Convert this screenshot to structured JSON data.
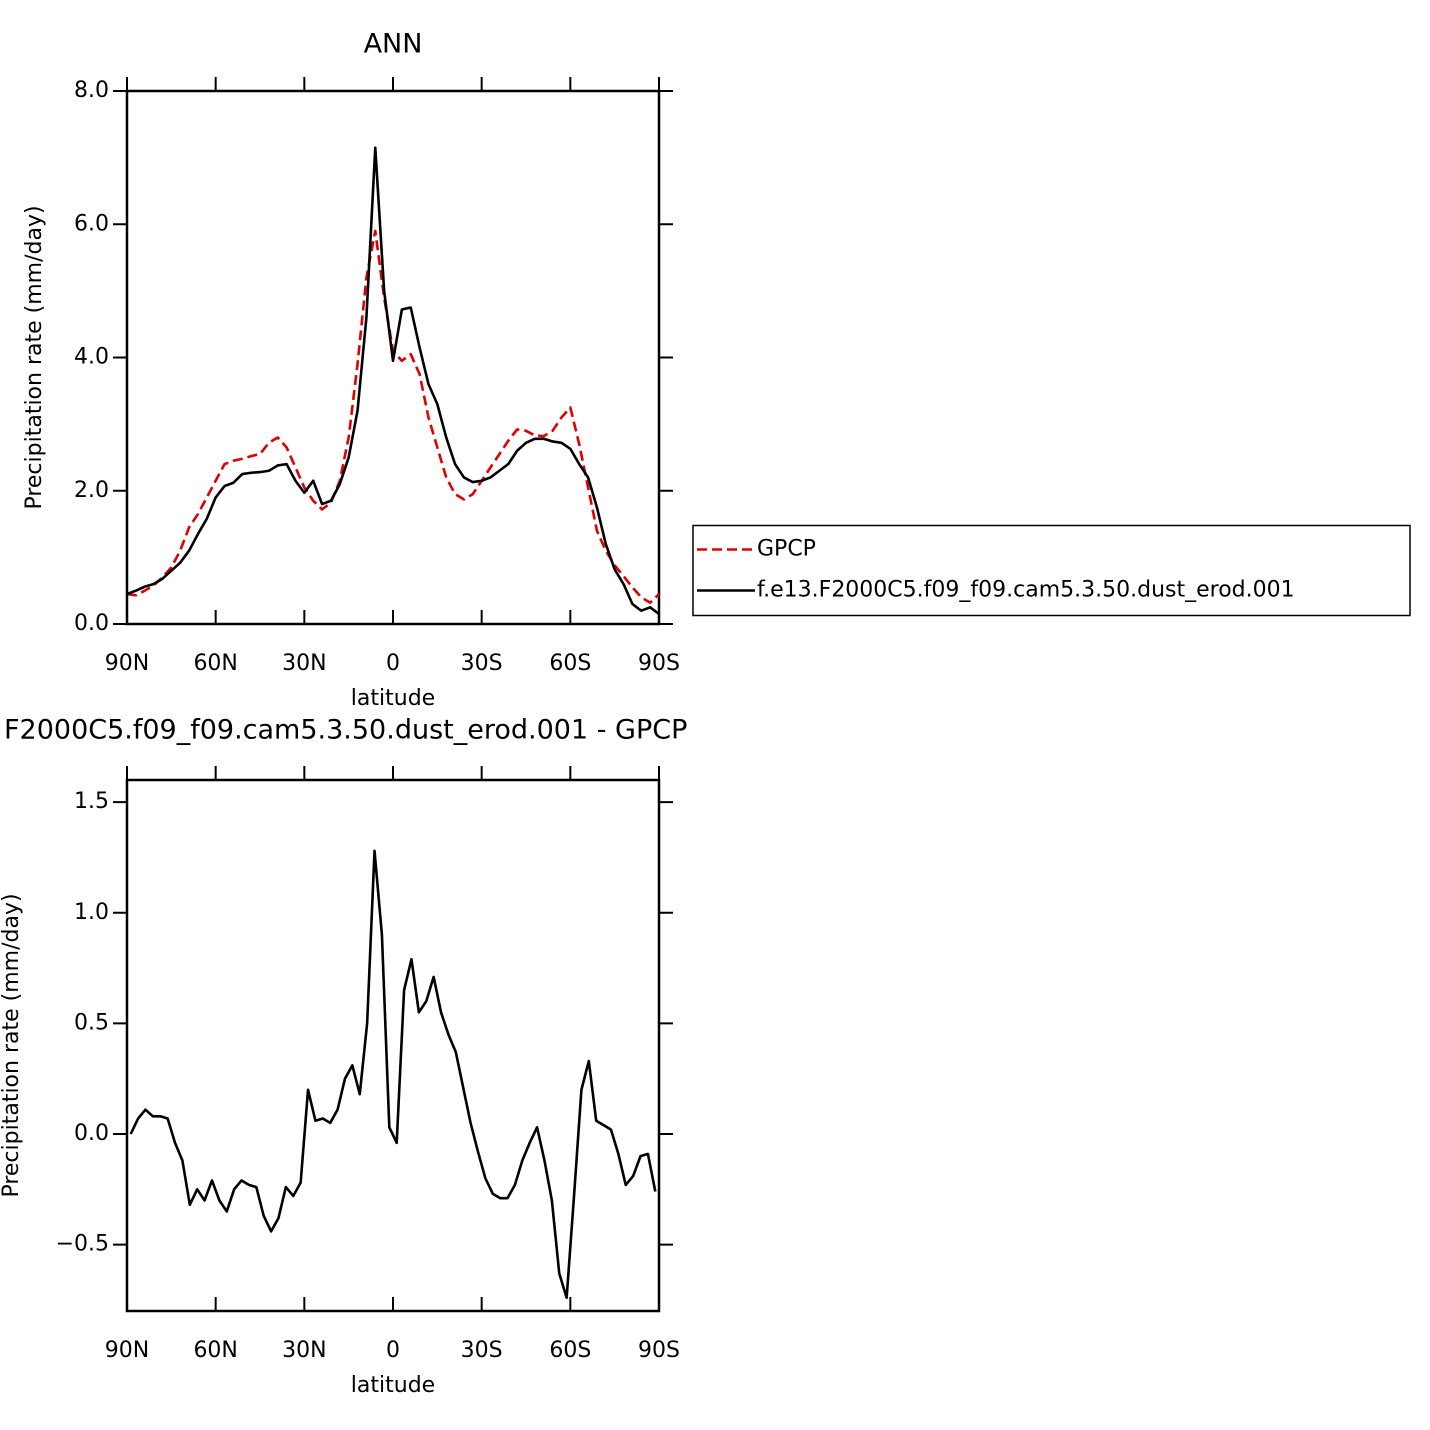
{
  "chart_data": [
    {
      "type": "line",
      "title": "ANN",
      "xlabel": "latitude",
      "ylabel": "Precipitation rate (mm/day)",
      "xlim": [
        90,
        -90
      ],
      "ylim": [
        0,
        8
      ],
      "xticks": [
        {
          "value": 90,
          "label": "90N"
        },
        {
          "value": 60,
          "label": "60N"
        },
        {
          "value": 30,
          "label": "30N"
        },
        0,
        {
          "value": -30,
          "label": "30S"
        },
        {
          "value": -60,
          "label": "60S"
        },
        {
          "value": -90,
          "label": "90S"
        }
      ],
      "yticks": [
        {
          "value": 0,
          "label": "0.0"
        },
        {
          "value": 2,
          "label": "2.0"
        },
        {
          "value": 4,
          "label": "4.0"
        },
        {
          "value": 6,
          "label": "6.0"
        },
        {
          "value": 8,
          "label": "8.0"
        }
      ],
      "legend": "right",
      "x": [
        90,
        87,
        84,
        81,
        78,
        75,
        72,
        69,
        66,
        63,
        60,
        57,
        54,
        51,
        48,
        45,
        42,
        39,
        36,
        33,
        30,
        27,
        24,
        21,
        18,
        15,
        12,
        9,
        6,
        3,
        0,
        -3,
        -6,
        -9,
        -12,
        -15,
        -18,
        -21,
        -24,
        -27,
        -30,
        -33,
        -36,
        -39,
        -42,
        -45,
        -48,
        -51,
        -54,
        -57,
        -60,
        -63,
        -66,
        -69,
        -72,
        -75,
        -78,
        -81,
        -84,
        -87,
        -90
      ],
      "series": [
        {
          "name": "GPCP",
          "color": "#e00000",
          "style": "dashed",
          "values": [
            0.45,
            0.43,
            0.5,
            0.58,
            0.7,
            0.85,
            1.1,
            1.45,
            1.65,
            1.9,
            2.15,
            2.4,
            2.45,
            2.48,
            2.52,
            2.55,
            2.72,
            2.8,
            2.65,
            2.35,
            2.05,
            1.85,
            1.72,
            1.82,
            2.15,
            2.8,
            3.9,
            5.2,
            5.9,
            4.9,
            4.1,
            3.95,
            4.05,
            3.75,
            3.1,
            2.65,
            2.2,
            1.95,
            1.87,
            1.95,
            2.15,
            2.35,
            2.55,
            2.75,
            2.92,
            2.9,
            2.83,
            2.82,
            2.9,
            3.1,
            3.25,
            2.7,
            2.05,
            1.4,
            1.1,
            0.88,
            0.72,
            0.55,
            0.4,
            0.32,
            0.45
          ]
        },
        {
          "name": "f.e13.F2000C5.f09_f09.cam5.3.50.dust_erod.001",
          "color": "#000000",
          "style": "solid",
          "values": [
            0.45,
            0.5,
            0.56,
            0.6,
            0.68,
            0.8,
            0.92,
            1.1,
            1.35,
            1.58,
            1.9,
            2.07,
            2.12,
            2.25,
            2.27,
            2.28,
            2.3,
            2.38,
            2.4,
            2.15,
            1.97,
            2.15,
            1.8,
            1.85,
            2.1,
            2.5,
            3.2,
            4.6,
            7.15,
            5.0,
            3.95,
            4.72,
            4.75,
            4.15,
            3.6,
            3.3,
            2.8,
            2.4,
            2.2,
            2.13,
            2.15,
            2.2,
            2.3,
            2.4,
            2.6,
            2.72,
            2.78,
            2.78,
            2.74,
            2.72,
            2.63,
            2.4,
            2.2,
            1.75,
            1.2,
            0.82,
            0.6,
            0.3,
            0.2,
            0.25,
            0.15
          ]
        }
      ]
    },
    {
      "type": "line",
      "title": "F2000C5.f09_f09.cam5.3.50.dust_erod.001 - GPCP",
      "xlabel": "latitude",
      "ylabel": "Precipitation rate (mm/day)",
      "xlim": [
        90,
        -90
      ],
      "ylim": [
        -0.8,
        1.6
      ],
      "xticks": [
        {
          "value": 90,
          "label": "90N"
        },
        {
          "value": 60,
          "label": "60N"
        },
        {
          "value": 30,
          "label": "30N"
        },
        0,
        {
          "value": -30,
          "label": "30S"
        },
        {
          "value": -60,
          "label": "60S"
        },
        {
          "value": -90,
          "label": "90S"
        }
      ],
      "yticks": [
        {
          "value": -0.5,
          "label": "−0.5"
        },
        {
          "value": 0,
          "label": "0.0"
        },
        0.5,
        {
          "value": 1,
          "label": "1.0"
        },
        1.5
      ],
      "color": "#000000",
      "x": [
        88.75,
        86.25,
        83.75,
        81.25,
        78.75,
        76.25,
        73.75,
        71.25,
        68.75,
        66.25,
        63.75,
        61.25,
        58.75,
        56.25,
        53.75,
        51.25,
        48.75,
        46.25,
        43.75,
        41.25,
        38.75,
        36.25,
        33.75,
        31.25,
        28.75,
        26.25,
        23.75,
        21.25,
        18.75,
        16.25,
        13.75,
        11.25,
        8.75,
        6.25,
        3.75,
        1.25,
        -1.25,
        -3.75,
        -6.25,
        -8.75,
        -11.25,
        -13.75,
        -16.25,
        -18.75,
        -21.25,
        -23.75,
        -26.25,
        -28.75,
        -31.25,
        -33.75,
        -36.25,
        -38.75,
        -41.25,
        -43.75,
        -46.25,
        -48.75,
        -51.25,
        -53.75,
        -56.25,
        -58.75,
        -61.25,
        -63.75,
        -66.25,
        -68.75,
        -71.25,
        -73.75,
        -76.25,
        -78.75,
        -81.25,
        -83.75,
        -86.25,
        -88.75
      ],
      "values": [
        0.0,
        0.07,
        0.11,
        0.08,
        0.08,
        0.07,
        -0.04,
        -0.12,
        -0.32,
        -0.25,
        -0.3,
        -0.21,
        -0.3,
        -0.35,
        -0.25,
        -0.21,
        -0.23,
        -0.24,
        -0.37,
        -0.44,
        -0.38,
        -0.24,
        -0.28,
        -0.22,
        0.2,
        0.06,
        0.07,
        0.05,
        0.11,
        0.25,
        0.31,
        0.18,
        0.5,
        1.28,
        0.9,
        0.03,
        -0.04,
        0.65,
        0.79,
        0.55,
        0.6,
        0.71,
        0.55,
        0.45,
        0.37,
        0.21,
        0.05,
        -0.08,
        -0.2,
        -0.27,
        -0.29,
        -0.29,
        -0.23,
        -0.12,
        -0.04,
        0.03,
        -0.12,
        -0.3,
        -0.63,
        -0.74,
        -0.28,
        0.2,
        0.33,
        0.06,
        0.04,
        0.02,
        -0.09,
        -0.23,
        -0.19,
        -0.1,
        -0.09,
        -0.26
      ]
    }
  ]
}
